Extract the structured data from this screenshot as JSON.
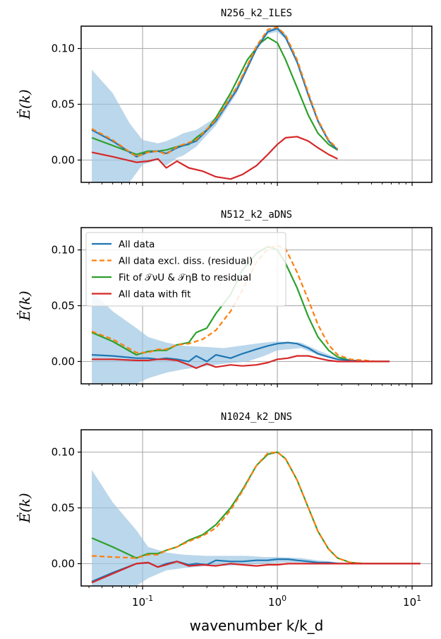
{
  "chart_data": {
    "type": "line",
    "x_scale": "log",
    "xlabel": "wavenumber k/k_d",
    "ylabel": "Ė(k)",
    "x_ticks": [
      0.1,
      1,
      10
    ],
    "x_tick_labels": [
      "10^-1",
      "10^0",
      "10^1"
    ],
    "y_ticks": [
      0.0,
      0.05,
      0.1
    ],
    "y_tick_labels": [
      "0.00",
      "0.05",
      "0.10"
    ],
    "xlim": [
      0.035,
      14
    ],
    "ylim": [
      -0.02,
      0.12
    ],
    "grid": true,
    "colors": {
      "all_data": "#1f77b4",
      "residual": "#ff7f0e",
      "fit": "#2ca02c",
      "with_fit": "#d62728",
      "band": "#9ec6e3"
    },
    "legend": {
      "location": "upper-left",
      "panel": 1,
      "entries": [
        {
          "key": "all_data",
          "label": "All data",
          "style": "solid"
        },
        {
          "key": "residual",
          "label": "All data excl. diss. (residual)",
          "style": "dashed"
        },
        {
          "key": "fit",
          "label": "Fit of 𝒯νU & 𝒯ηB to residual",
          "style": "solid"
        },
        {
          "key": "with_fit",
          "label": "All data with fit",
          "style": "solid"
        }
      ]
    },
    "panels": [
      {
        "title": "N256_k2_ILES",
        "series": {
          "all_data": {
            "x": [
              0.042,
              0.06,
              0.09,
              0.11,
              0.13,
              0.15,
              0.18,
              0.25,
              0.35,
              0.5,
              0.7,
              0.85,
              1.0,
              1.15,
              1.4,
              1.7,
              2.0,
              2.4,
              2.8
            ],
            "y": [
              0.027,
              0.017,
              0.003,
              0.007,
              0.008,
              0.006,
              0.011,
              0.017,
              0.035,
              0.063,
              0.1,
              0.115,
              0.118,
              0.11,
              0.088,
              0.058,
              0.035,
              0.017,
              0.009
            ]
          },
          "residual": {
            "x": [
              0.042,
              0.06,
              0.09,
              0.11,
              0.13,
              0.15,
              0.18,
              0.25,
              0.35,
              0.5,
              0.7,
              0.85,
              1.0,
              1.15,
              1.4,
              1.7,
              2.0,
              2.4,
              2.8
            ],
            "y": [
              0.028,
              0.018,
              0.003,
              0.007,
              0.008,
              0.005,
              0.012,
              0.018,
              0.036,
              0.065,
              0.102,
              0.117,
              0.119,
              0.112,
              0.09,
              0.06,
              0.036,
              0.018,
              0.01
            ]
          },
          "fit": {
            "x": [
              0.042,
              0.06,
              0.09,
              0.11,
              0.13,
              0.15,
              0.18,
              0.22,
              0.25,
              0.3,
              0.35,
              0.45,
              0.6,
              0.75,
              0.85,
              1.0,
              1.15,
              1.4,
              1.7,
              2.0,
              2.4,
              2.8
            ],
            "y": [
              0.02,
              0.013,
              0.005,
              0.008,
              0.008,
              0.009,
              0.012,
              0.014,
              0.02,
              0.027,
              0.038,
              0.06,
              0.09,
              0.105,
              0.11,
              0.105,
              0.09,
              0.065,
              0.04,
              0.024,
              0.014,
              0.009
            ]
          },
          "with_fit": {
            "x": [
              0.042,
              0.06,
              0.09,
              0.11,
              0.13,
              0.15,
              0.18,
              0.22,
              0.28,
              0.35,
              0.45,
              0.55,
              0.7,
              0.85,
              1.0,
              1.15,
              1.4,
              1.7,
              2.0,
              2.4,
              2.8
            ],
            "y": [
              0.007,
              0.003,
              -0.002,
              -0.001,
              0.001,
              -0.007,
              -0.001,
              -0.007,
              -0.01,
              -0.015,
              -0.017,
              -0.013,
              -0.005,
              0.005,
              0.014,
              0.02,
              0.021,
              0.017,
              0.011,
              0.005,
              0.001
            ]
          }
        },
        "band": {
          "x": [
            0.042,
            0.06,
            0.08,
            0.1,
            0.13,
            0.15,
            0.18,
            0.2,
            0.25,
            0.35,
            0.5,
            0.7,
            0.85,
            1.0,
            1.15,
            1.4,
            1.7,
            2.0,
            2.4,
            2.8
          ],
          "upper": [
            0.081,
            0.06,
            0.033,
            0.018,
            0.015,
            0.017,
            0.021,
            0.024,
            0.027,
            0.038,
            0.067,
            0.103,
            0.117,
            0.12,
            0.113,
            0.09,
            0.06,
            0.037,
            0.019,
            0.01
          ],
          "lower": [
            -0.02,
            -0.02,
            -0.02,
            -0.004,
            0.0,
            -0.005,
            0.002,
            0.004,
            0.012,
            0.031,
            0.06,
            0.098,
            0.113,
            0.115,
            0.108,
            0.086,
            0.056,
            0.033,
            0.016,
            0.008
          ]
        }
      },
      {
        "title": "N512_k2_aDNS",
        "series": {
          "all_data": {
            "x": [
              0.042,
              0.06,
              0.09,
              0.11,
              0.13,
              0.15,
              0.18,
              0.22,
              0.25,
              0.3,
              0.35,
              0.45,
              0.55,
              0.7,
              0.85,
              1.0,
              1.2,
              1.4,
              1.7,
              2.0,
              2.4,
              2.8,
              3.5,
              4.5,
              5.5,
              6.8
            ],
            "y": [
              0.006,
              0.005,
              0.003,
              0.003,
              0.002,
              0.003,
              0.002,
              0.0,
              0.005,
              0.0,
              0.006,
              0.003,
              0.007,
              0.011,
              0.014,
              0.016,
              0.017,
              0.016,
              0.012,
              0.007,
              0.004,
              0.002,
              0.001,
              0.0,
              0.0,
              0.0
            ]
          },
          "residual": {
            "x": [
              0.042,
              0.06,
              0.09,
              0.11,
              0.13,
              0.15,
              0.18,
              0.22,
              0.28,
              0.35,
              0.45,
              0.55,
              0.7,
              0.85,
              1.0,
              1.15,
              1.4,
              1.7,
              2.0,
              2.4,
              2.8,
              3.5,
              4.5,
              5.5,
              6.8
            ],
            "y": [
              0.027,
              0.02,
              0.008,
              0.008,
              0.011,
              0.011,
              0.015,
              0.016,
              0.02,
              0.028,
              0.045,
              0.064,
              0.089,
              0.101,
              0.104,
              0.101,
              0.08,
              0.055,
              0.033,
              0.015,
              0.006,
              0.002,
              0.001,
              0.0,
              0.0
            ]
          },
          "fit": {
            "x": [
              0.042,
              0.06,
              0.09,
              0.11,
              0.13,
              0.15,
              0.18,
              0.22,
              0.25,
              0.3,
              0.35,
              0.45,
              0.55,
              0.7,
              0.85,
              1.0,
              1.15,
              1.4,
              1.7,
              2.0,
              2.4,
              2.8,
              3.5,
              4.5,
              5.5,
              6.8
            ],
            "y": [
              0.026,
              0.018,
              0.006,
              0.009,
              0.01,
              0.01,
              0.015,
              0.017,
              0.026,
              0.03,
              0.043,
              0.06,
              0.082,
              0.097,
              0.103,
              0.1,
              0.088,
              0.066,
              0.04,
              0.022,
              0.01,
              0.004,
              0.001,
              0.0,
              0.0,
              0.0
            ]
          },
          "with_fit": {
            "x": [
              0.042,
              0.06,
              0.09,
              0.11,
              0.13,
              0.15,
              0.18,
              0.22,
              0.25,
              0.3,
              0.35,
              0.45,
              0.55,
              0.7,
              0.85,
              1.0,
              1.2,
              1.4,
              1.7,
              2.0,
              2.4,
              2.8,
              3.5,
              4.5,
              5.5,
              6.8
            ],
            "y": [
              0.002,
              0.002,
              0.001,
              0.001,
              0.002,
              0.002,
              0.001,
              -0.003,
              -0.006,
              -0.002,
              -0.005,
              -0.003,
              -0.004,
              -0.003,
              -0.001,
              0.002,
              0.003,
              0.005,
              0.005,
              0.003,
              0.001,
              0.0,
              0.0,
              0.0,
              0.0,
              0.0
            ]
          }
        },
        "band": {
          "x": [
            0.042,
            0.06,
            0.09,
            0.11,
            0.15,
            0.2,
            0.3,
            0.4,
            0.6,
            0.8,
            1.0,
            1.5,
            2.0,
            2.8,
            4.0,
            6.8
          ],
          "upper": [
            0.063,
            0.045,
            0.03,
            0.022,
            0.017,
            0.014,
            0.013,
            0.012,
            0.015,
            0.017,
            0.018,
            0.017,
            0.01,
            0.003,
            0.001,
            0.0
          ],
          "lower": [
            -0.02,
            -0.02,
            -0.02,
            -0.015,
            -0.01,
            -0.007,
            -0.004,
            -0.002,
            0.0,
            0.005,
            0.01,
            0.012,
            0.006,
            0.001,
            0.0,
            0.0
          ]
        }
      },
      {
        "title": "N1024_k2_DNS",
        "series": {
          "all_data": {
            "x": [
              0.042,
              0.06,
              0.09,
              0.11,
              0.13,
              0.15,
              0.18,
              0.22,
              0.25,
              0.3,
              0.35,
              0.45,
              0.55,
              0.7,
              0.85,
              1.0,
              1.2,
              1.4,
              1.7,
              2.0,
              2.4,
              2.8,
              3.5,
              4.5,
              6.0,
              8.0,
              11.5
            ],
            "y": [
              -0.016,
              -0.008,
              0.0,
              0.001,
              -0.003,
              0.0,
              0.002,
              -0.001,
              0.0,
              -0.001,
              0.003,
              0.002,
              0.002,
              0.003,
              0.003,
              0.004,
              0.004,
              0.003,
              0.002,
              0.001,
              0.001,
              0.0,
              0.0,
              0.0,
              0.0,
              0.0,
              0.0
            ]
          },
          "residual": {
            "x": [
              0.042,
              0.06,
              0.09,
              0.11,
              0.13,
              0.15,
              0.18,
              0.22,
              0.28,
              0.35,
              0.45,
              0.55,
              0.7,
              0.85,
              1.0,
              1.15,
              1.4,
              1.7,
              2.0,
              2.4,
              2.8,
              3.5,
              4.5,
              6.0,
              8.0,
              11.5
            ],
            "y": [
              0.007,
              0.006,
              0.005,
              0.008,
              0.008,
              0.012,
              0.015,
              0.02,
              0.025,
              0.032,
              0.048,
              0.065,
              0.088,
              0.099,
              0.1,
              0.094,
              0.075,
              0.05,
              0.029,
              0.013,
              0.005,
              0.001,
              0.0,
              0.0,
              0.0,
              0.0
            ]
          },
          "fit": {
            "x": [
              0.042,
              0.06,
              0.09,
              0.11,
              0.13,
              0.15,
              0.18,
              0.22,
              0.28,
              0.35,
              0.45,
              0.55,
              0.7,
              0.85,
              1.0,
              1.15,
              1.4,
              1.7,
              2.0,
              2.4,
              2.8,
              3.5,
              4.5,
              6.0,
              8.0,
              11.5
            ],
            "y": [
              0.023,
              0.015,
              0.005,
              0.009,
              0.009,
              0.012,
              0.015,
              0.021,
              0.026,
              0.035,
              0.05,
              0.066,
              0.088,
              0.098,
              0.1,
              0.094,
              0.075,
              0.05,
              0.029,
              0.013,
              0.005,
              0.001,
              0.0,
              0.0,
              0.0,
              0.0
            ]
          },
          "with_fit": {
            "x": [
              0.042,
              0.06,
              0.09,
              0.11,
              0.13,
              0.15,
              0.18,
              0.22,
              0.28,
              0.35,
              0.45,
              0.55,
              0.7,
              0.85,
              1.0,
              1.2,
              1.4,
              1.7,
              2.0,
              2.4,
              2.8,
              3.5,
              4.5,
              6.0,
              8.0,
              11.5
            ],
            "y": [
              -0.017,
              -0.009,
              0.0,
              0.001,
              -0.003,
              -0.001,
              0.002,
              -0.002,
              -0.001,
              -0.002,
              0.0,
              -0.001,
              -0.002,
              -0.001,
              -0.001,
              0.0,
              0.0,
              0.0,
              0.0,
              0.0,
              0.0,
              0.0,
              0.0,
              0.0,
              0.0,
              0.0
            ]
          }
        },
        "band": {
          "x": [
            0.042,
            0.06,
            0.09,
            0.11,
            0.15,
            0.2,
            0.3,
            0.4,
            0.6,
            0.8,
            1.0,
            1.5,
            2.0,
            3.0,
            5.0,
            11.5
          ],
          "upper": [
            0.084,
            0.055,
            0.03,
            0.015,
            0.01,
            0.008,
            0.007,
            0.007,
            0.007,
            0.006,
            0.006,
            0.005,
            0.003,
            0.001,
            0.0,
            0.0
          ],
          "lower": [
            -0.02,
            -0.02,
            -0.02,
            -0.013,
            -0.006,
            -0.004,
            -0.002,
            -0.002,
            -0.001,
            0.0,
            0.001,
            0.001,
            0.0,
            0.0,
            0.0,
            0.0
          ]
        }
      }
    ]
  }
}
